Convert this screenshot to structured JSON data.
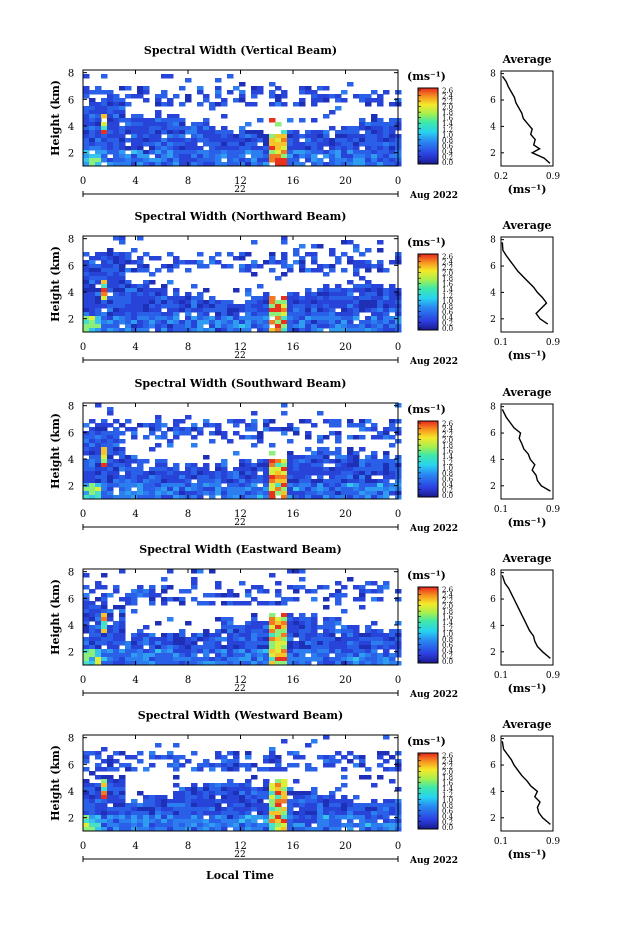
{
  "figure": {
    "x_axis_label": "Local Time",
    "day_label": "22",
    "month_label": "Aug 2022",
    "heatmap_ylabel": "Height (km)",
    "colorbar_unit": "(ms⁻¹)",
    "profile_title": "Average",
    "profile_xlabel": "(ms⁻¹)"
  },
  "chart_data": [
    {
      "type": "heatmap",
      "title": "Spectral Width (Vertical Beam)",
      "ylabel": "Height (km)",
      "xlabel": "Local Time",
      "x_ticks": [
        "0",
        "4",
        "8",
        "12",
        "16",
        "20",
        "0"
      ],
      "y_ticks": [
        "2",
        "4",
        "6",
        "8"
      ],
      "xlim": [
        0,
        24
      ],
      "ylim": [
        1.0,
        8.2
      ],
      "colorbar": {
        "unit": "(ms⁻¹)",
        "ticks": [
          "2.6",
          "2.4",
          "2.2",
          "2.0",
          "1.8",
          "1.6",
          "1.4",
          "1.2",
          "1.0",
          "0.8",
          "0.6",
          "0.4",
          "0.2",
          "0.0"
        ],
        "range": [
          0.0,
          2.8
        ]
      },
      "profile": {
        "title": "Average",
        "xlabel": "(ms⁻¹)",
        "xlim": [
          0.2,
          0.9
        ],
        "x_ticks": [
          "0.2",
          "0.9"
        ],
        "y_ticks": [
          "2",
          "4",
          "6",
          "8"
        ],
        "points": [
          [
            0.86,
            1.2
          ],
          [
            0.78,
            1.6
          ],
          [
            0.62,
            2.0
          ],
          [
            0.72,
            2.3
          ],
          [
            0.64,
            2.6
          ],
          [
            0.66,
            3.0
          ],
          [
            0.6,
            3.4
          ],
          [
            0.62,
            3.8
          ],
          [
            0.56,
            4.2
          ],
          [
            0.5,
            4.6
          ],
          [
            0.48,
            5.0
          ],
          [
            0.44,
            5.4
          ],
          [
            0.4,
            5.8
          ],
          [
            0.38,
            6.2
          ],
          [
            0.34,
            6.6
          ],
          [
            0.3,
            7.0
          ],
          [
            0.27,
            7.4
          ],
          [
            0.22,
            7.8
          ]
        ]
      }
    },
    {
      "type": "heatmap",
      "title": "Spectral Width (Northward Beam)",
      "ylabel": "Height (km)",
      "xlabel": "Local Time",
      "x_ticks": [
        "0",
        "4",
        "8",
        "12",
        "16",
        "20",
        "0"
      ],
      "y_ticks": [
        "2",
        "4",
        "6",
        "8"
      ],
      "xlim": [
        0,
        24
      ],
      "ylim": [
        1.0,
        8.2
      ],
      "colorbar": {
        "unit": "(ms⁻¹)",
        "ticks": [
          "2.6",
          "2.4",
          "2.2",
          "2.0",
          "1.8",
          "1.6",
          "1.4",
          "1.2",
          "1.0",
          "0.8",
          "0.6",
          "0.4",
          "0.2",
          "0.0"
        ],
        "range": [
          0.0,
          2.8
        ]
      },
      "profile": {
        "title": "Average",
        "xlabel": "(ms⁻¹)",
        "xlim": [
          0.1,
          0.9
        ],
        "x_ticks": [
          "0.1",
          "0.9"
        ],
        "y_ticks": [
          "2",
          "4",
          "6",
          "8"
        ],
        "points": [
          [
            0.82,
            1.6
          ],
          [
            0.7,
            2.0
          ],
          [
            0.64,
            2.4
          ],
          [
            0.72,
            2.8
          ],
          [
            0.8,
            3.2
          ],
          [
            0.74,
            3.6
          ],
          [
            0.66,
            4.0
          ],
          [
            0.6,
            4.4
          ],
          [
            0.52,
            4.8
          ],
          [
            0.44,
            5.2
          ],
          [
            0.36,
            5.6
          ],
          [
            0.3,
            6.0
          ],
          [
            0.24,
            6.4
          ],
          [
            0.18,
            6.8
          ],
          [
            0.13,
            7.2
          ],
          [
            0.12,
            7.8
          ]
        ]
      }
    },
    {
      "type": "heatmap",
      "title": "Spectral Width (Southward Beam)",
      "ylabel": "Height (km)",
      "xlabel": "Local Time",
      "x_ticks": [
        "0",
        "4",
        "8",
        "12",
        "16",
        "20",
        "0"
      ],
      "y_ticks": [
        "2",
        "4",
        "6",
        "8"
      ],
      "xlim": [
        0,
        24
      ],
      "ylim": [
        1.0,
        8.2
      ],
      "colorbar": {
        "unit": "(ms⁻¹)",
        "ticks": [
          "2.6",
          "2.4",
          "2.2",
          "2.0",
          "1.8",
          "1.6",
          "1.4",
          "1.2",
          "1.0",
          "0.8",
          "0.6",
          "0.4",
          "0.2",
          "0.0"
        ],
        "range": [
          0.0,
          2.8
        ]
      },
      "profile": {
        "title": "Average",
        "xlabel": "(ms⁻¹)",
        "xlim": [
          0.1,
          0.9
        ],
        "x_ticks": [
          "0.1",
          "0.9"
        ],
        "y_ticks": [
          "2",
          "4",
          "6",
          "8"
        ],
        "points": [
          [
            0.86,
            1.6
          ],
          [
            0.72,
            2.0
          ],
          [
            0.66,
            2.4
          ],
          [
            0.64,
            2.8
          ],
          [
            0.58,
            3.2
          ],
          [
            0.62,
            3.6
          ],
          [
            0.55,
            4.0
          ],
          [
            0.52,
            4.4
          ],
          [
            0.45,
            4.8
          ],
          [
            0.42,
            5.2
          ],
          [
            0.38,
            5.6
          ],
          [
            0.4,
            6.0
          ],
          [
            0.3,
            6.4
          ],
          [
            0.24,
            6.8
          ],
          [
            0.18,
            7.2
          ],
          [
            0.12,
            7.8
          ]
        ]
      }
    },
    {
      "type": "heatmap",
      "title": "Spectral Width (Eastward Beam)",
      "ylabel": "Height (km)",
      "xlabel": "Local Time",
      "x_ticks": [
        "0",
        "4",
        "8",
        "12",
        "16",
        "20",
        "0"
      ],
      "y_ticks": [
        "2",
        "4",
        "6",
        "8"
      ],
      "xlim": [
        0,
        24
      ],
      "ylim": [
        1.0,
        8.2
      ],
      "colorbar": {
        "unit": "(ms⁻¹)",
        "ticks": [
          "2.6",
          "2.4",
          "2.2",
          "2.0",
          "1.8",
          "1.6",
          "1.4",
          "1.2",
          "1.0",
          "0.8",
          "0.6",
          "0.4",
          "0.2",
          "0.0"
        ],
        "range": [
          0.0,
          2.8
        ]
      },
      "profile": {
        "title": "Average",
        "xlabel": "(ms⁻¹)",
        "xlim": [
          0.1,
          0.9
        ],
        "x_ticks": [
          "0.1",
          "0.9"
        ],
        "y_ticks": [
          "2",
          "4",
          "6",
          "8"
        ],
        "points": [
          [
            0.86,
            1.5
          ],
          [
            0.74,
            2.0
          ],
          [
            0.66,
            2.4
          ],
          [
            0.62,
            2.8
          ],
          [
            0.6,
            3.2
          ],
          [
            0.54,
            3.6
          ],
          [
            0.5,
            4.0
          ],
          [
            0.46,
            4.4
          ],
          [
            0.42,
            4.8
          ],
          [
            0.38,
            5.2
          ],
          [
            0.34,
            5.6
          ],
          [
            0.3,
            6.0
          ],
          [
            0.26,
            6.4
          ],
          [
            0.22,
            6.8
          ],
          [
            0.16,
            7.2
          ],
          [
            0.12,
            7.8
          ]
        ]
      }
    },
    {
      "type": "heatmap",
      "title": "Spectral Width (Westward Beam)",
      "ylabel": "Height (km)",
      "xlabel": "Local Time",
      "x_ticks": [
        "0",
        "4",
        "8",
        "12",
        "16",
        "20",
        "0"
      ],
      "y_ticks": [
        "2",
        "4",
        "6",
        "8"
      ],
      "xlim": [
        0,
        24
      ],
      "ylim": [
        1.0,
        8.2
      ],
      "colorbar": {
        "unit": "(ms⁻¹)",
        "ticks": [
          "2.6",
          "2.4",
          "2.2",
          "2.0",
          "1.8",
          "1.6",
          "1.4",
          "1.2",
          "1.0",
          "0.8",
          "0.6",
          "0.4",
          "0.2",
          "0.0"
        ],
        "range": [
          0.0,
          2.8
        ]
      },
      "profile": {
        "title": "Average",
        "xlabel": "(ms⁻¹)",
        "xlim": [
          0.1,
          0.9
        ],
        "x_ticks": [
          "0.1",
          "0.9"
        ],
        "y_ticks": [
          "2",
          "4",
          "6",
          "8"
        ],
        "points": [
          [
            0.86,
            1.5
          ],
          [
            0.74,
            2.0
          ],
          [
            0.68,
            2.4
          ],
          [
            0.66,
            2.8
          ],
          [
            0.7,
            3.2
          ],
          [
            0.62,
            3.6
          ],
          [
            0.66,
            4.0
          ],
          [
            0.56,
            4.4
          ],
          [
            0.5,
            4.8
          ],
          [
            0.42,
            5.2
          ],
          [
            0.36,
            5.6
          ],
          [
            0.3,
            6.0
          ],
          [
            0.26,
            6.4
          ],
          [
            0.2,
            6.8
          ],
          [
            0.14,
            7.2
          ],
          [
            0.12,
            7.8
          ]
        ]
      }
    }
  ]
}
